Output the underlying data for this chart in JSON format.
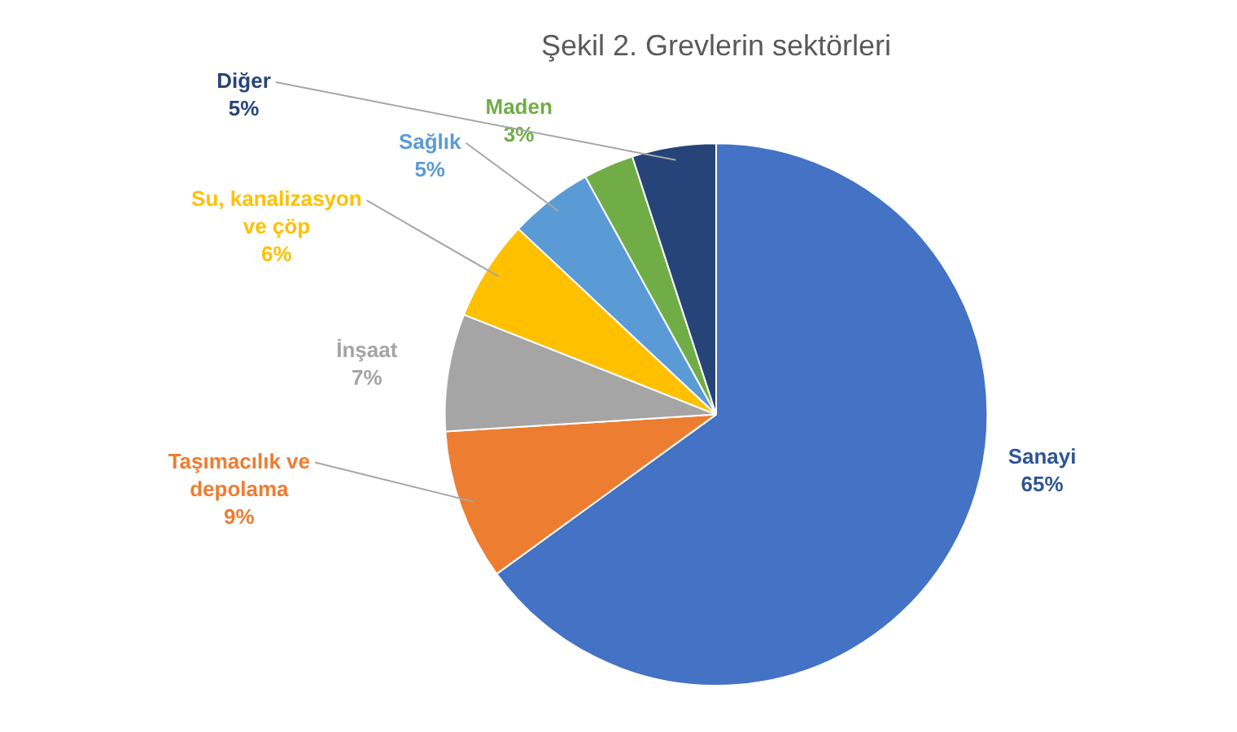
{
  "chart_data": {
    "type": "pie",
    "title": "Şekil 2. Grevlerin sektörleri",
    "categories": [
      "Sanayi",
      "Taşımacılık ve depolama",
      "İnşaat",
      "Su, kanalizasyon ve çöp",
      "Sağlık",
      "Maden",
      "Diğer"
    ],
    "values": [
      65,
      9,
      7,
      6,
      5,
      3,
      5
    ],
    "value_labels": [
      "65%",
      "9%",
      "7%",
      "6%",
      "5%",
      "3%",
      "5%"
    ],
    "colors": [
      "#4472c4",
      "#ed7d31",
      "#a5a5a5",
      "#ffc000",
      "#5b9bd5",
      "#70ad47",
      "#264478"
    ],
    "legend": false
  }
}
